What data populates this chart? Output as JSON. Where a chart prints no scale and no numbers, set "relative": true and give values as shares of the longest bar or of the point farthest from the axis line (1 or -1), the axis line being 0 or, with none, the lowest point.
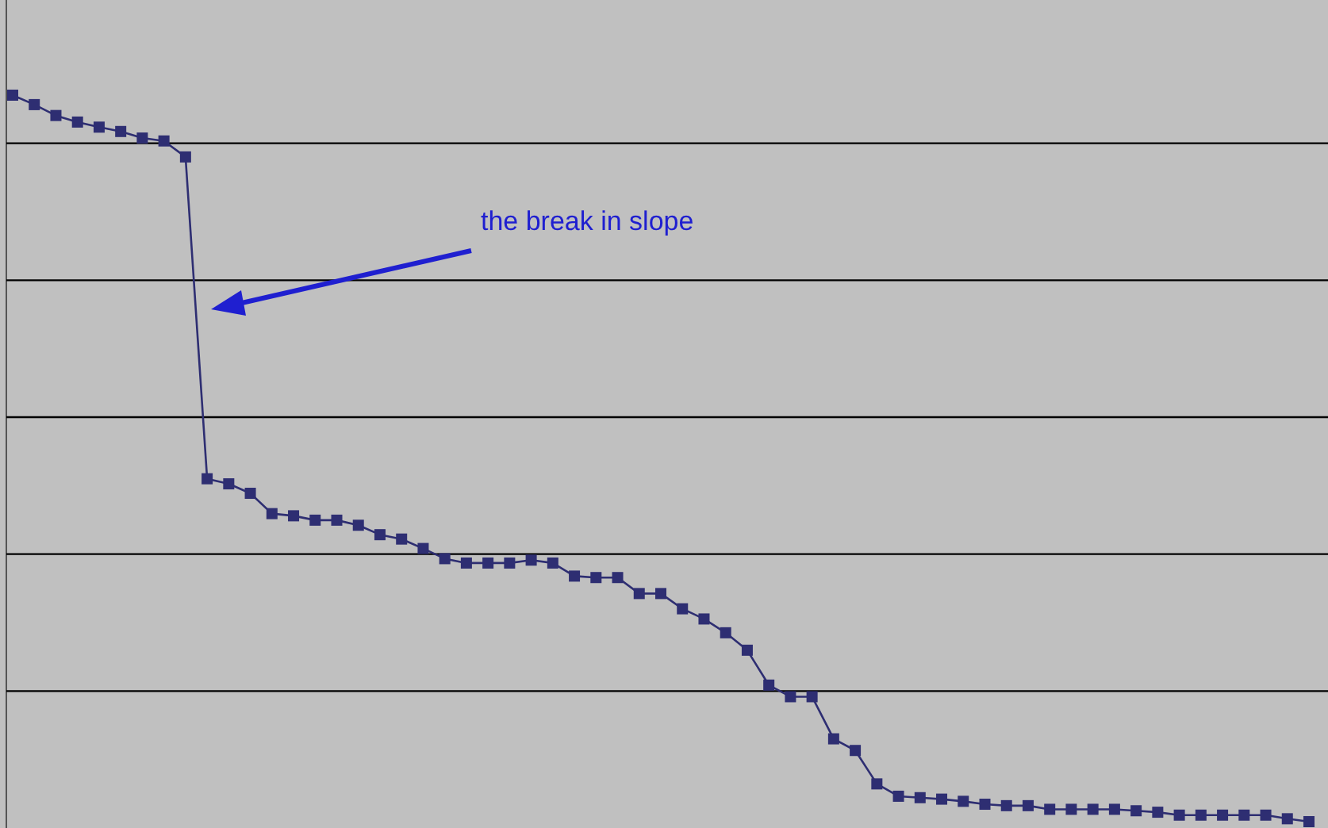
{
  "chart_data": {
    "type": "line",
    "relative": true,
    "grid": true,
    "marker": "square",
    "line_style": "solid",
    "annotations": [
      "the break in slope"
    ],
    "categories": [
      null,
      null,
      null,
      null,
      null,
      null,
      null,
      null,
      null,
      null,
      null,
      null,
      null,
      null,
      null,
      null,
      null,
      null,
      null,
      null,
      null,
      null,
      null,
      null,
      null,
      null,
      null,
      null,
      null,
      null,
      null,
      null,
      null,
      null,
      null,
      null,
      null,
      null,
      null,
      null,
      null,
      null,
      null,
      null,
      null,
      null,
      null,
      null,
      null,
      null,
      null,
      null,
      null,
      null,
      null,
      null,
      null,
      null,
      null,
      null,
      null
    ],
    "series": [
      {
        "color": "#2e2e72",
        "values": [
          1,
          0.987,
          0.972,
          0.963,
          0.956,
          0.95,
          0.941,
          0.937,
          0.915,
          0.472,
          0.465,
          0.452,
          0.424,
          0.421,
          0.415,
          0.415,
          0.408,
          0.395,
          0.389,
          0.376,
          0.362,
          0.356,
          0.356,
          0.356,
          0.36,
          0.356,
          0.338,
          0.336,
          0.336,
          0.314,
          0.314,
          0.293,
          0.279,
          0.26,
          0.236,
          0.188,
          0.172,
          0.172,
          0.114,
          0.098,
          0.052,
          0.035,
          0.033,
          0.031,
          0.028,
          0.024,
          0.022,
          0.022,
          0.017,
          0.017,
          0.017,
          0.017,
          0.015,
          0.013,
          0.009,
          0.009,
          0.009,
          0.009,
          0.009,
          0.004,
          0
        ]
      }
    ]
  }
}
